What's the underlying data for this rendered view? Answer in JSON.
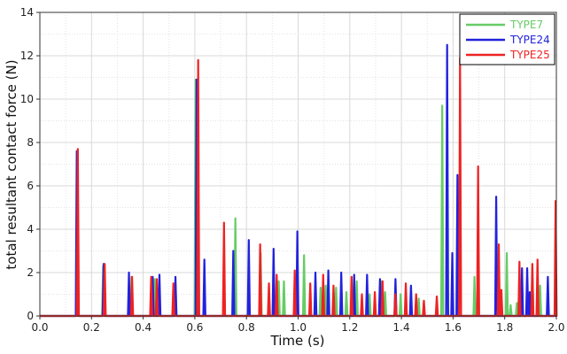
{
  "chart_data": {
    "type": "line",
    "xlabel": "Time (s)",
    "ylabel": "total resultant contact force (N)",
    "xlim": [
      0.0,
      2.0
    ],
    "ylim": [
      0,
      14
    ],
    "xticks": [
      0.0,
      0.2,
      0.4,
      0.6,
      0.8,
      1.0,
      1.2,
      1.4,
      1.6,
      1.8,
      2.0
    ],
    "xtick_labels": [
      "0.0",
      "0.2",
      "0.4",
      "0.6",
      "0.8",
      "1.0",
      "1.2",
      "1.4",
      "1.6",
      "1.8",
      "2.0"
    ],
    "yticks": [
      0,
      2,
      4,
      6,
      8,
      10,
      12,
      14
    ],
    "ytick_labels": [
      "0",
      "2",
      "4",
      "6",
      "8",
      "10",
      "12",
      "14"
    ],
    "grid": true,
    "legend_position": "top-right",
    "series": [
      {
        "name": "TYPE7",
        "color": "#66cc66",
        "spikes": [
          [
            0.145,
            7.6
          ],
          [
            0.245,
            2.3
          ],
          [
            0.355,
            1.8
          ],
          [
            0.445,
            1.7
          ],
          [
            0.525,
            1.5
          ],
          [
            0.603,
            10.9
          ],
          [
            0.757,
            4.5
          ],
          [
            0.855,
            2.9
          ],
          [
            0.925,
            1.6
          ],
          [
            0.945,
            1.6
          ],
          [
            1.023,
            2.8
          ],
          [
            1.087,
            1.3
          ],
          [
            1.107,
            1.4
          ],
          [
            1.147,
            1.3
          ],
          [
            1.187,
            1.1
          ],
          [
            1.227,
            1.6
          ],
          [
            1.277,
            1.0
          ],
          [
            1.323,
            1.6
          ],
          [
            1.337,
            1.1
          ],
          [
            1.397,
            1.0
          ],
          [
            1.417,
            0.9
          ],
          [
            1.467,
            0.8
          ],
          [
            1.558,
            9.7
          ],
          [
            1.683,
            1.8
          ],
          [
            1.808,
            2.9
          ],
          [
            1.823,
            0.5
          ],
          [
            1.847,
            0.6
          ],
          [
            1.897,
            0.7
          ],
          [
            1.907,
            2.2
          ],
          [
            1.937,
            1.4
          ]
        ]
      },
      {
        "name": "TYPE24",
        "color": "#2222dd",
        "spikes": [
          [
            0.143,
            7.6
          ],
          [
            0.247,
            2.4
          ],
          [
            0.345,
            2.0
          ],
          [
            0.437,
            1.8
          ],
          [
            0.463,
            1.9
          ],
          [
            0.525,
            1.8
          ],
          [
            0.607,
            10.9
          ],
          [
            0.637,
            2.6
          ],
          [
            0.749,
            3.0
          ],
          [
            0.809,
            3.5
          ],
          [
            0.905,
            3.1
          ],
          [
            0.997,
            3.9
          ],
          [
            1.067,
            2.0
          ],
          [
            1.117,
            2.1
          ],
          [
            1.167,
            2.0
          ],
          [
            1.217,
            1.9
          ],
          [
            1.267,
            1.9
          ],
          [
            1.317,
            1.7
          ],
          [
            1.377,
            1.7
          ],
          [
            1.437,
            1.4
          ],
          [
            1.577,
            12.5
          ],
          [
            1.597,
            2.9
          ],
          [
            1.617,
            6.5
          ],
          [
            1.767,
            5.5
          ],
          [
            1.867,
            2.2
          ],
          [
            1.887,
            2.2
          ],
          [
            1.897,
            1.1
          ],
          [
            1.967,
            1.8
          ]
        ]
      },
      {
        "name": "TYPE25",
        "color": "#ee2222",
        "spikes": [
          [
            0.147,
            7.7
          ],
          [
            0.251,
            2.4
          ],
          [
            0.357,
            1.8
          ],
          [
            0.431,
            1.8
          ],
          [
            0.453,
            1.7
          ],
          [
            0.517,
            1.5
          ],
          [
            0.613,
            11.8
          ],
          [
            0.713,
            4.3
          ],
          [
            0.853,
            3.3
          ],
          [
            0.887,
            1.5
          ],
          [
            0.917,
            1.9
          ],
          [
            0.987,
            2.1
          ],
          [
            1.047,
            1.5
          ],
          [
            1.097,
            1.9
          ],
          [
            1.137,
            1.4
          ],
          [
            1.207,
            1.8
          ],
          [
            1.247,
            1.0
          ],
          [
            1.297,
            1.1
          ],
          [
            1.327,
            1.6
          ],
          [
            1.377,
            1.0
          ],
          [
            1.417,
            1.5
          ],
          [
            1.457,
            1.0
          ],
          [
            1.487,
            0.7
          ],
          [
            1.537,
            0.9
          ],
          [
            1.627,
            11.9
          ],
          [
            1.697,
            6.9
          ],
          [
            1.777,
            3.3
          ],
          [
            1.787,
            1.2
          ],
          [
            1.857,
            2.5
          ],
          [
            1.907,
            2.4
          ],
          [
            1.927,
            2.6
          ],
          [
            1.997,
            5.3
          ]
        ]
      }
    ]
  }
}
